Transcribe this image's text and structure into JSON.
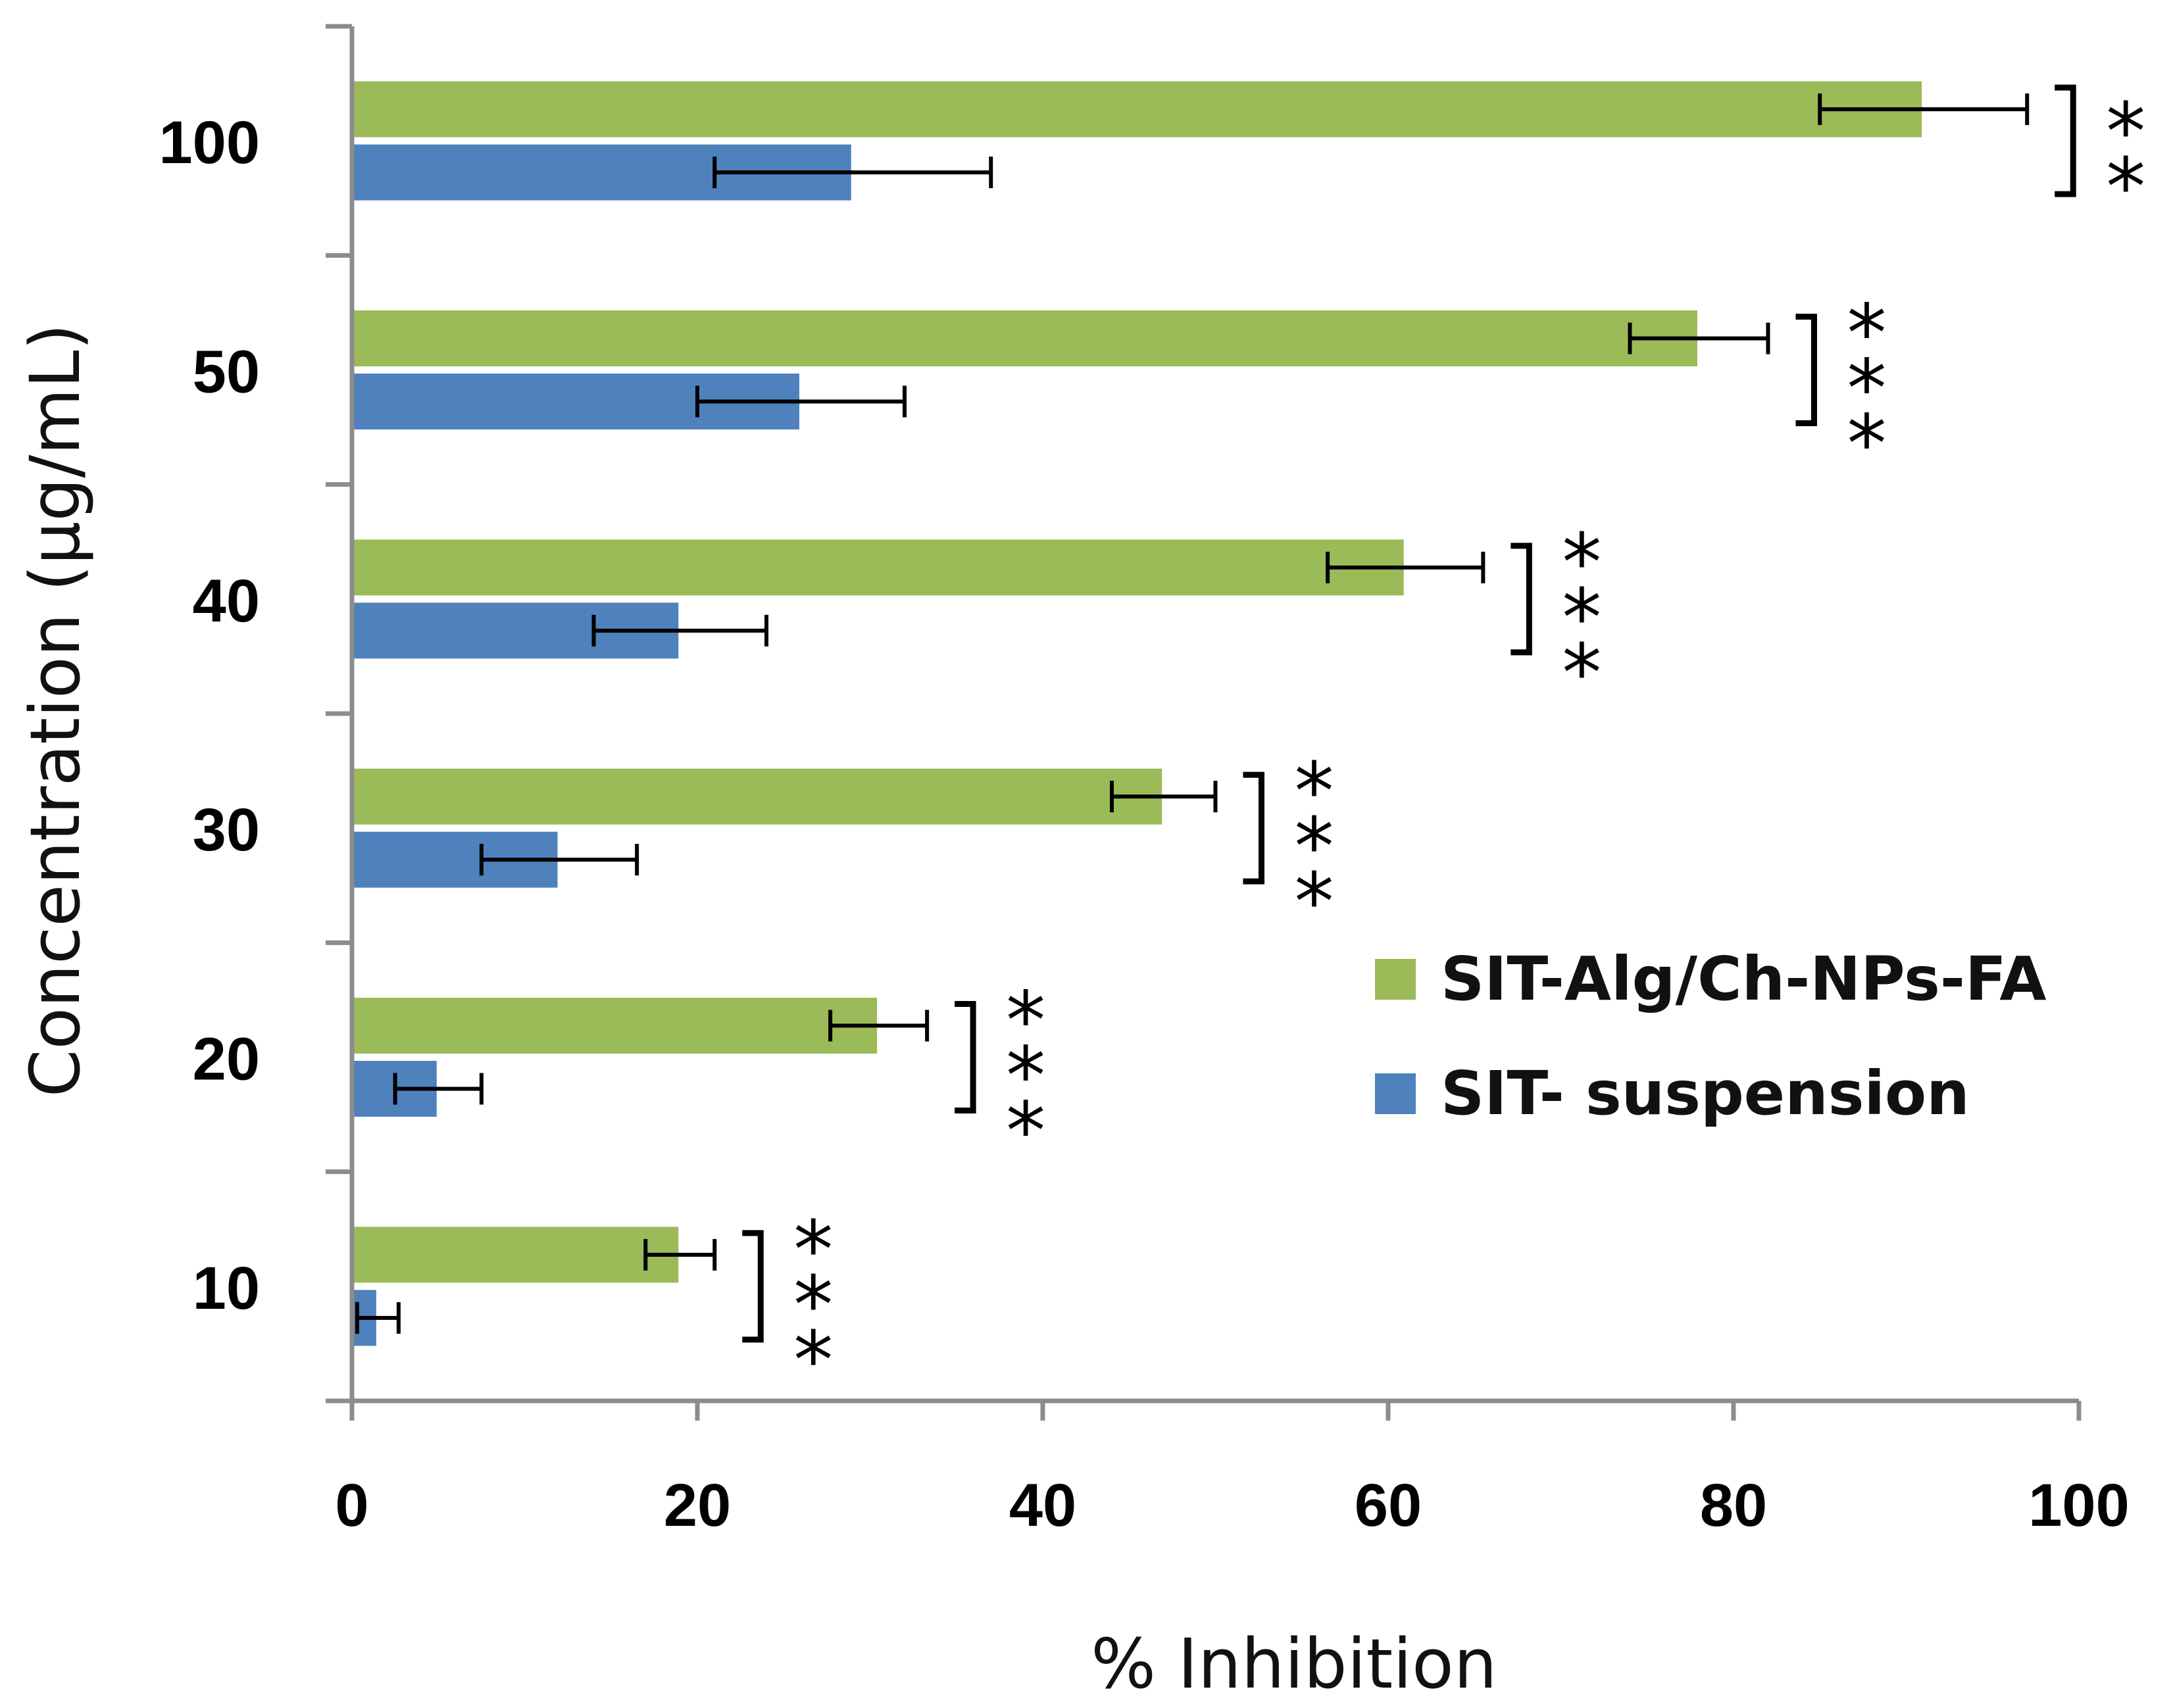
{
  "chart_data": {
    "type": "bar",
    "orientation": "horizontal",
    "title": "",
    "xlabel": "% Inhibition",
    "ylabel": "Concentration (µg/mL)",
    "xlim": [
      0,
      100
    ],
    "xticks": [
      "0",
      "20",
      "40",
      "60",
      "80",
      "100"
    ],
    "xtick_values": [
      0,
      20,
      40,
      60,
      80,
      100
    ],
    "categories": [
      "10",
      "20",
      "30",
      "40",
      "50",
      "100"
    ],
    "grid": false,
    "legend_position": "center-right",
    "series": [
      {
        "name": "SIT-Alg/Ch-NPs-FA",
        "color": "#9BBB59",
        "values": [
          19,
          30.5,
          47,
          61,
          78,
          91
        ],
        "errors": [
          2,
          2.8,
          3,
          4.5,
          4,
          6
        ]
      },
      {
        "name": "SIT- suspension",
        "color": "#4F81BD",
        "values": [
          1.5,
          5,
          12,
          19,
          26,
          29
        ],
        "errors": [
          1.2,
          2.5,
          4.5,
          5,
          6,
          8
        ]
      }
    ],
    "significance": [
      "***",
      "***",
      "***",
      "***",
      "***",
      "**"
    ]
  }
}
